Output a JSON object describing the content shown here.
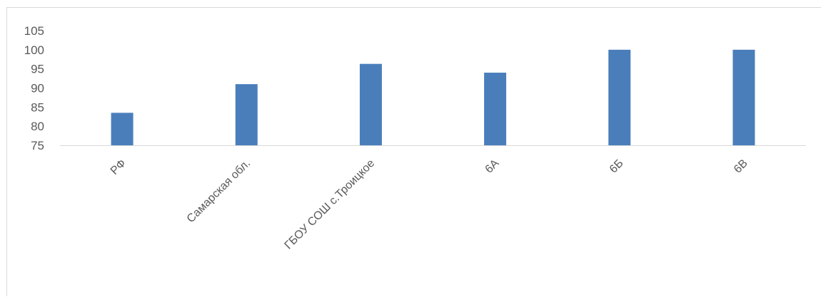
{
  "chart_data": {
    "type": "bar",
    "title": "",
    "xlabel": "",
    "ylabel": "",
    "categories": [
      "РФ",
      "Самарская обл.",
      "ГБОУ СОШ с.Троицкое",
      "6А",
      "6Б",
      "6В"
    ],
    "values": [
      83.5,
      91,
      96.3,
      94,
      100,
      100
    ],
    "ylim": [
      75,
      105
    ],
    "yticks": [
      75,
      80,
      85,
      90,
      95,
      100,
      105
    ],
    "grid": false,
    "legend": "none",
    "bar_color": "#4a7ebb",
    "axis_color": "#d9d9d9",
    "label_color": "#595959"
  }
}
